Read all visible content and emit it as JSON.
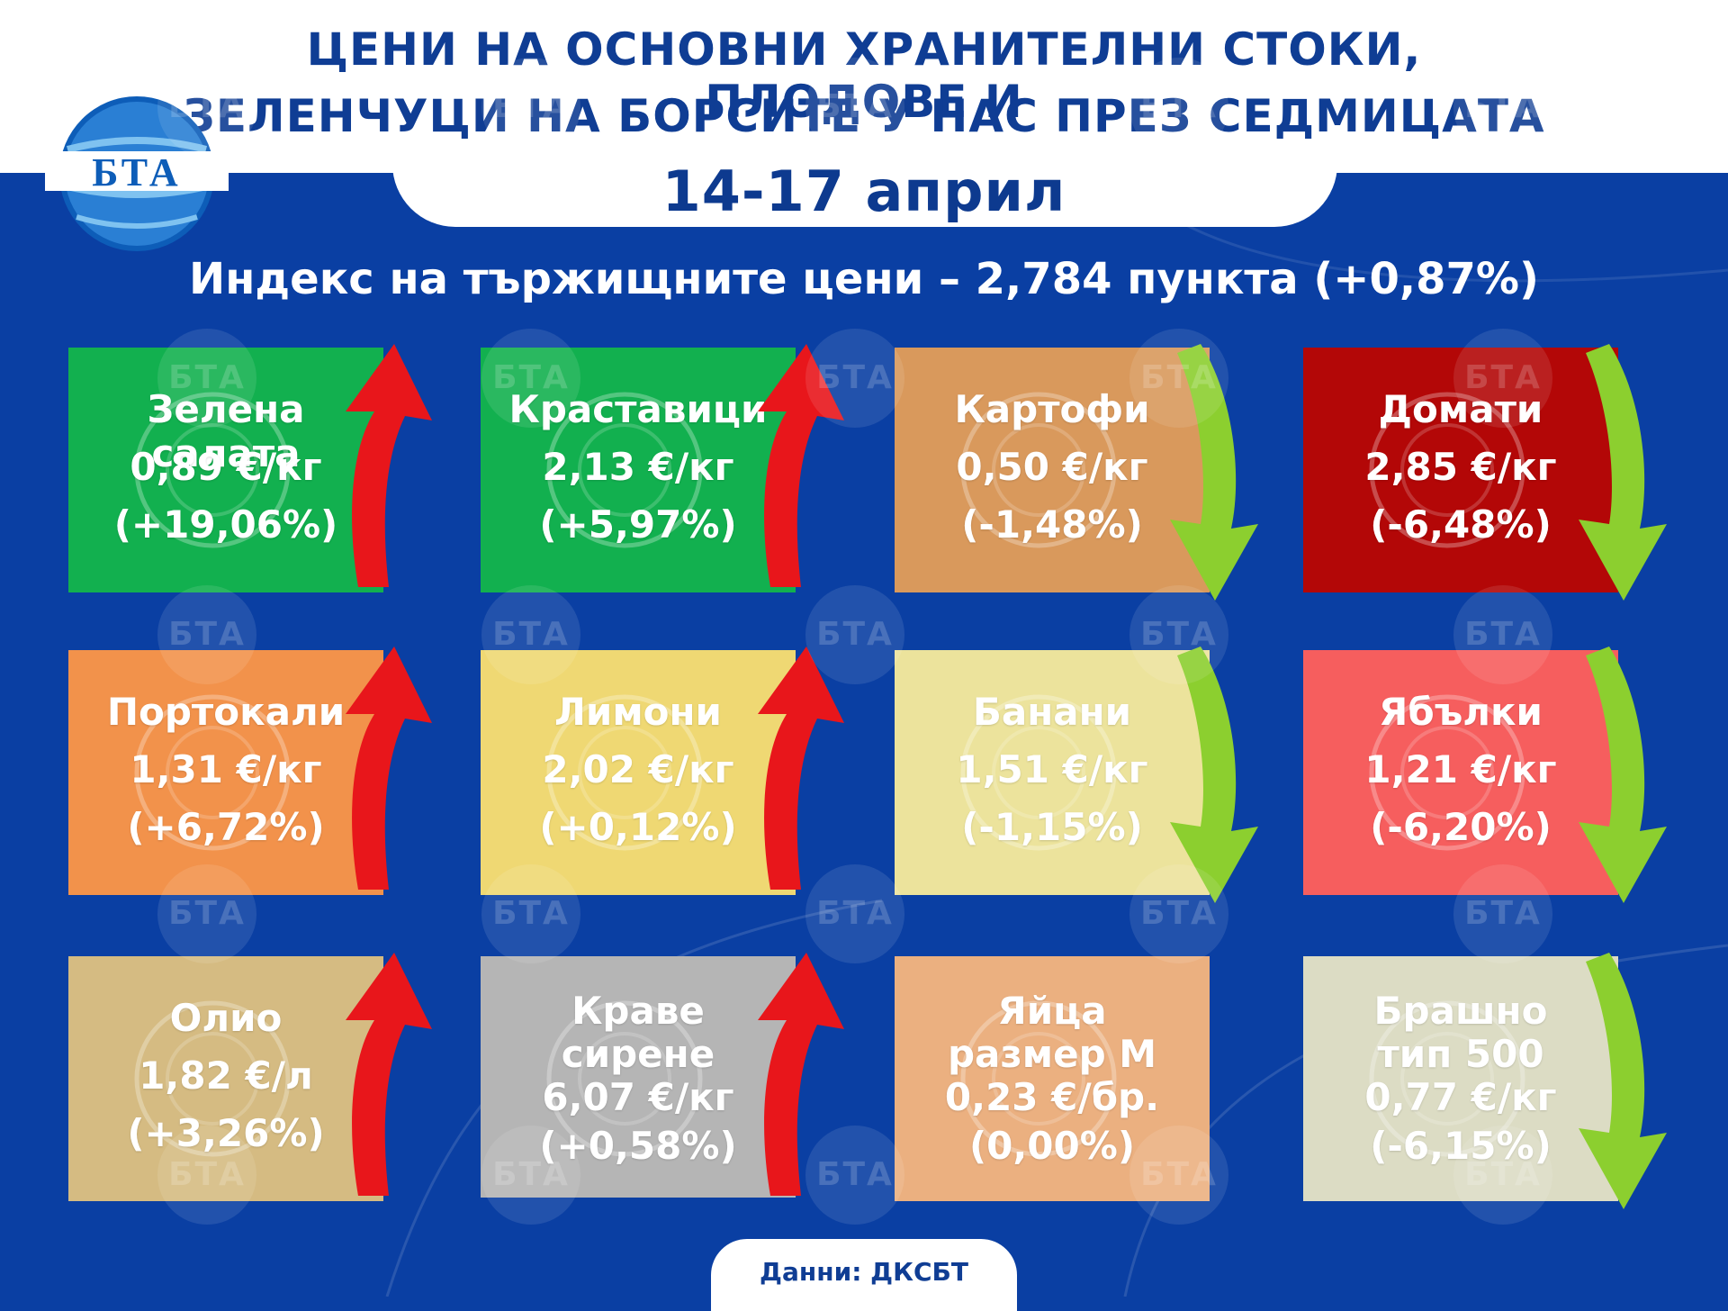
{
  "header": {
    "title_line1": "ЦЕНИ НА ОСНОВНИ ХРАНИТЕЛНИ СТОКИ, ПЛОДОВЕ И",
    "title_line2": "ЗЕЛЕНЧУЦИ НА БОРСИТЕ У НАС ПРЕЗ СЕДМИЦАТА",
    "dates": "14-17 април",
    "logo_text": "БТА"
  },
  "index_line": "Индекс на тържищните цени – 2,784 пункта (+0,87%)",
  "colors": {
    "background": "#0a3fa3",
    "title": "#0f3d94",
    "arrow_up": "#e8161b",
    "arrow_down": "#8ccf2f"
  },
  "cards": [
    {
      "name": "Зелена салата",
      "price": "0,89 €/кг",
      "change": "(+19,06%)",
      "direction": "up",
      "color": "#12b04f",
      "icon": "lettuce-icon"
    },
    {
      "name": "Краставици",
      "price": "2,13 €/кг",
      "change": "(+5,97%)",
      "direction": "up",
      "color": "#12b04f",
      "icon": "cucumber-icon"
    },
    {
      "name": "Картофи",
      "price": "0,50 €/кг",
      "change": "(-1,48%)",
      "direction": "down",
      "color": "#d9995c",
      "icon": "potato-icon"
    },
    {
      "name": "Домати",
      "price": "2,85 €/кг",
      "change": "(-6,48%)",
      "direction": "down",
      "color": "#b30707",
      "icon": "tomato-icon"
    },
    {
      "name": "Портокали",
      "price": "1,31 €/кг",
      "change": "(+6,72%)",
      "direction": "up",
      "color": "#f2924b",
      "icon": "orange-icon"
    },
    {
      "name": "Лимони",
      "price": "2,02 €/кг",
      "change": "(+0,12%)",
      "direction": "up",
      "color": "#efd873",
      "icon": "lemon-icon"
    },
    {
      "name": "Банани",
      "price": "1,51 €/кг",
      "change": "(-1,15%)",
      "direction": "down",
      "color": "#ece39c",
      "icon": "banana-icon"
    },
    {
      "name": "Ябълки",
      "price": "1,21 €/кг",
      "change": "(-6,20%)",
      "direction": "down",
      "color": "#f65e5e",
      "icon": "apple-icon"
    },
    {
      "name": "Олио",
      "price": "1,82 €/л",
      "change": "(+3,26%)",
      "direction": "up",
      "color": "#d5bb82",
      "icon": "oil-bottle-icon"
    },
    {
      "name": "Краве сирене",
      "price": "6,07 €/кг",
      "change": "(+0,58%)",
      "direction": "up",
      "color": "#b5b5b5",
      "icon": "cheese-icon"
    },
    {
      "name": "Яйца размер М",
      "price": "0,23 €/бр.",
      "change": "(0,00%)",
      "direction": "flat",
      "color": "#ebb080",
      "icon": "egg-icon"
    },
    {
      "name": "Брашно тип 500",
      "price": "0,77 €/кг",
      "change": "(-6,15%)",
      "direction": "down",
      "color": "#dcdcc4",
      "icon": "flour-sack-icon"
    }
  ],
  "source": "Данни: ДКСБТ"
}
